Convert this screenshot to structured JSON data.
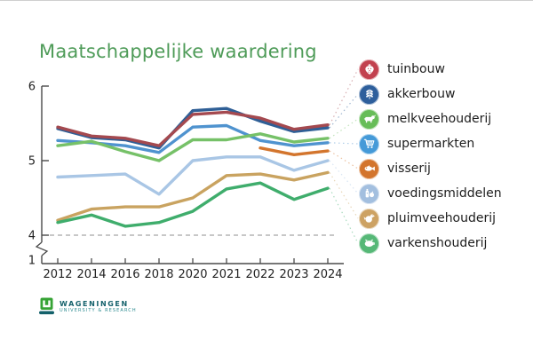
{
  "title": "Maatschappelijke waardering",
  "title_color": "#4e9b58",
  "chart_data": {
    "type": "line",
    "categories": [
      "2012",
      "2014",
      "2016",
      "2018",
      "2020",
      "2021",
      "2022",
      "2023",
      "2024"
    ],
    "yticks": [
      6,
      5,
      4,
      1
    ],
    "ylim": [
      4,
      6
    ],
    "axis_break_between": [
      1,
      4
    ],
    "reference_line_y": 4,
    "grid": false,
    "legend_position": "right",
    "series": [
      {
        "name": "tuinbouw",
        "icon": "strawberry",
        "line_color": "#a4494f",
        "icon_bg": "#c2414f",
        "values": [
          5.45,
          5.33,
          5.3,
          5.2,
          5.62,
          5.65,
          5.57,
          5.42,
          5.48
        ]
      },
      {
        "name": "akkerbouw",
        "icon": "wheat",
        "line_color": "#2f5f96",
        "icon_bg": "#2e5f9c",
        "values": [
          5.43,
          5.31,
          5.28,
          5.17,
          5.67,
          5.7,
          5.53,
          5.39,
          5.44
        ]
      },
      {
        "name": "melkveehouderij",
        "icon": "cow",
        "line_color": "#76c168",
        "icon_bg": "#67bd58",
        "values": [
          5.2,
          5.26,
          5.12,
          5.0,
          5.28,
          5.28,
          5.36,
          5.25,
          5.3
        ]
      },
      {
        "name": "supermarkten",
        "icon": "cart",
        "line_color": "#4f93cf",
        "icon_bg": "#459ad8",
        "values": [
          5.27,
          5.24,
          5.2,
          5.11,
          5.45,
          5.47,
          5.27,
          5.2,
          5.24
        ]
      },
      {
        "name": "visserij",
        "icon": "fish",
        "line_color": "#d3752d",
        "icon_bg": "#d3752d",
        "values": [
          null,
          null,
          null,
          null,
          null,
          null,
          5.17,
          5.08,
          5.13
        ]
      },
      {
        "name": "voedingsmiddelen",
        "icon": "groceries",
        "line_color": "#a9c6e5",
        "icon_bg": "#a3bfdf",
        "values": [
          4.78,
          4.8,
          4.82,
          4.55,
          5.0,
          5.05,
          5.05,
          4.87,
          5.0
        ]
      },
      {
        "name": "pluimveehouderij",
        "icon": "chicken",
        "line_color": "#c9a360",
        "icon_bg": "#cda263",
        "values": [
          4.2,
          4.35,
          4.38,
          4.38,
          4.5,
          4.8,
          4.82,
          4.74,
          4.84
        ]
      },
      {
        "name": "varkenshouderij",
        "icon": "pig",
        "line_color": "#3fad6c",
        "icon_bg": "#56b877",
        "values": [
          4.17,
          4.27,
          4.12,
          4.17,
          4.32,
          4.62,
          4.7,
          4.48,
          4.63
        ]
      }
    ]
  },
  "logo": {
    "line1": "WAGENINGEN",
    "line2": "UNIVERSITY & RESEARCH"
  }
}
